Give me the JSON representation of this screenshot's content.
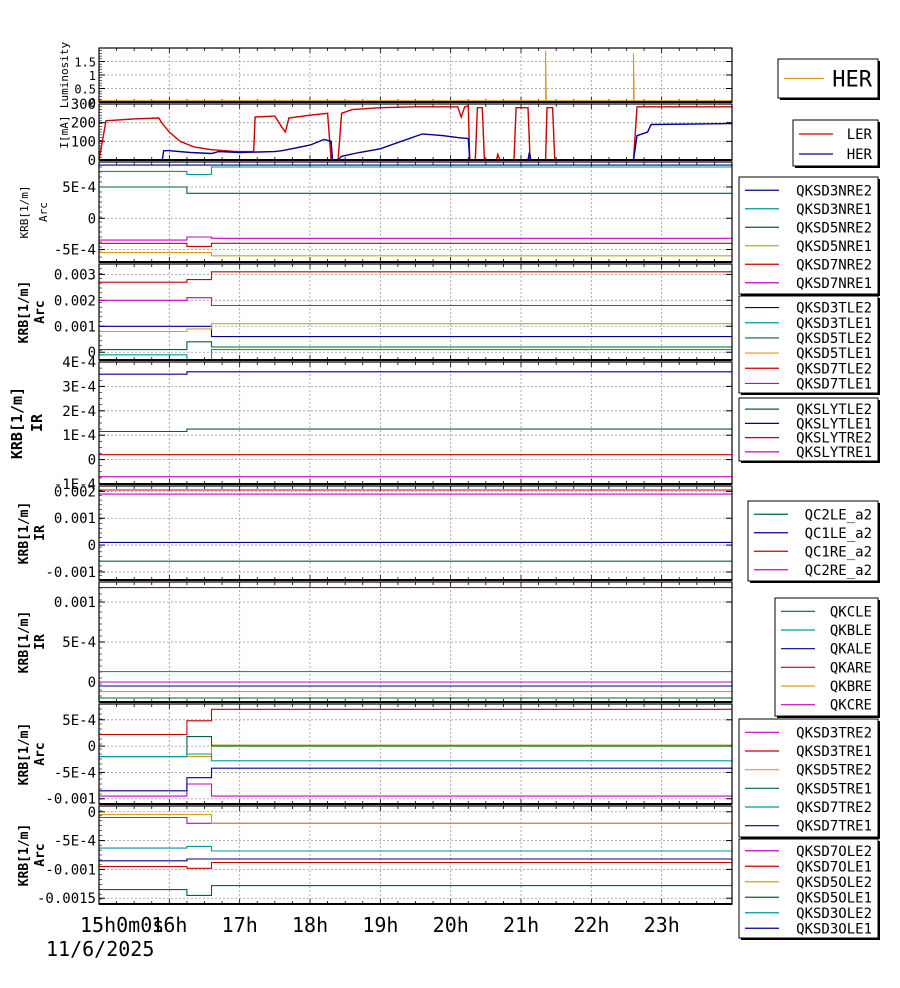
{
  "figure": {
    "date_label": "11/6/2025",
    "x_tick_labels": [
      "15h0m0s",
      "16h",
      "17h",
      "18h",
      "19h",
      "20h",
      "21h",
      "22h",
      "23h"
    ],
    "x_range": [
      15.0,
      24.0
    ]
  },
  "chart_data": [
    {
      "id": "luminosity",
      "type": "line",
      "ylabel": "Luminosity",
      "ylim": [
        0,
        2
      ],
      "yticks": [
        {
          "v": 0,
          "t": "0"
        },
        {
          "v": 0.5,
          "t": "0.5"
        },
        {
          "v": 1,
          "t": "1"
        },
        {
          "v": 1.5,
          "t": "1.5"
        }
      ],
      "series": [
        {
          "name": "HER",
          "color": "#d4a017",
          "points": [
            [
              15,
              0.05
            ],
            [
              21.35,
              0.05
            ],
            [
              21.35,
              1.9
            ],
            [
              21.36,
              0.05
            ],
            [
              22.6,
              0.05
            ],
            [
              22.6,
              1.8
            ],
            [
              22.61,
              0.05
            ],
            [
              24,
              0.05
            ]
          ]
        }
      ]
    },
    {
      "id": "current",
      "type": "line",
      "ylabel": "I[mA]",
      "ylim": [
        0,
        300
      ],
      "yticks": [
        {
          "v": 0,
          "t": "0"
        },
        {
          "v": 100,
          "t": "100"
        },
        {
          "v": 200,
          "t": "200"
        },
        {
          "v": 300,
          "t": "300"
        }
      ],
      "series": [
        {
          "name": "LER",
          "color": "#cc0000",
          "points": [
            [
              15,
              0
            ],
            [
              15.1,
              210
            ],
            [
              15.5,
              220
            ],
            [
              15.85,
              225
            ],
            [
              15.9,
              195
            ],
            [
              16.0,
              150
            ],
            [
              16.15,
              100
            ],
            [
              16.35,
              70
            ],
            [
              16.6,
              55
            ],
            [
              16.95,
              45
            ],
            [
              17.2,
              45
            ],
            [
              17.22,
              230
            ],
            [
              17.5,
              235
            ],
            [
              17.6,
              175
            ],
            [
              17.65,
              150
            ],
            [
              17.7,
              225
            ],
            [
              18.0,
              240
            ],
            [
              18.25,
              250
            ],
            [
              18.3,
              0
            ],
            [
              18.4,
              0
            ],
            [
              18.45,
              250
            ],
            [
              18.6,
              270
            ],
            [
              19.0,
              280
            ],
            [
              19.5,
              285
            ],
            [
              20.0,
              285
            ],
            [
              20.1,
              285
            ],
            [
              20.15,
              230
            ],
            [
              20.2,
              285
            ],
            [
              20.25,
              290
            ],
            [
              20.27,
              0
            ],
            [
              20.35,
              0
            ],
            [
              20.38,
              280
            ],
            [
              20.45,
              280
            ],
            [
              20.48,
              0
            ],
            [
              20.65,
              0
            ],
            [
              20.67,
              30
            ],
            [
              20.7,
              0
            ],
            [
              20.9,
              0
            ],
            [
              20.93,
              280
            ],
            [
              21.1,
              280
            ],
            [
              21.13,
              0
            ],
            [
              21.35,
              0
            ],
            [
              21.37,
              280
            ],
            [
              21.45,
              280
            ],
            [
              21.48,
              0
            ],
            [
              22.6,
              0
            ],
            [
              22.65,
              285
            ],
            [
              23.0,
              285
            ],
            [
              24,
              285
            ]
          ]
        },
        {
          "name": "HER",
          "color": "#000099",
          "points": [
            [
              15,
              0
            ],
            [
              15.9,
              0
            ],
            [
              15.92,
              50
            ],
            [
              16.0,
              50
            ],
            [
              16.3,
              40
            ],
            [
              16.6,
              35
            ],
            [
              16.7,
              45
            ],
            [
              17.0,
              40
            ],
            [
              17.5,
              45
            ],
            [
              17.6,
              50
            ],
            [
              17.8,
              65
            ],
            [
              18.0,
              80
            ],
            [
              18.2,
              110
            ],
            [
              18.3,
              100
            ],
            [
              18.32,
              0
            ],
            [
              18.4,
              0
            ],
            [
              18.45,
              20
            ],
            [
              18.7,
              40
            ],
            [
              19.0,
              60
            ],
            [
              19.3,
              100
            ],
            [
              19.6,
              140
            ],
            [
              19.9,
              130
            ],
            [
              20.1,
              120
            ],
            [
              20.25,
              115
            ],
            [
              20.27,
              0
            ],
            [
              21.1,
              0
            ],
            [
              21.12,
              40
            ],
            [
              21.14,
              0
            ],
            [
              22.6,
              0
            ],
            [
              22.65,
              130
            ],
            [
              22.8,
              150
            ],
            [
              22.85,
              190
            ],
            [
              24,
              195
            ]
          ]
        }
      ]
    },
    {
      "id": "arc1",
      "type": "line",
      "ylabel": "KRB[1/m]",
      "ylabel2": "Arc",
      "ylim": [
        -0.0007,
        0.0009
      ],
      "yticks": [
        {
          "v": 0.0005,
          "t": "5E-4"
        },
        {
          "v": 0,
          "t": "0"
        },
        {
          "v": -0.0005,
          "t": "-5E-4"
        }
      ],
      "series": [
        {
          "name": "QKSD3NRE2",
          "color": "#000099",
          "steps": [
            [
              0.00085,
              0.00085,
              0.00085
            ]
          ]
        },
        {
          "name": "QKSD3NRE1",
          "color": "#009999",
          "steps": [
            [
              0.00075,
              0.0007,
              0.00082
            ]
          ]
        },
        {
          "name": "QKSD5NRE2",
          "color": "#006633",
          "steps": [
            [
              0.0005,
              0.0004,
              0.0004
            ]
          ]
        },
        {
          "name": "QKSD5NRE1",
          "color": "#d4a017",
          "steps": [
            [
              -0.00055,
              -0.00055,
              -0.0006
            ]
          ]
        },
        {
          "name": "QKSD7NRE2",
          "color": "#cc0000",
          "steps": [
            [
              -0.0004,
              -0.00045,
              -0.0004
            ]
          ]
        },
        {
          "name": "QKSD7NRE1",
          "color": "#cc00cc",
          "steps": [
            [
              -0.00035,
              -0.0003,
              -0.00032
            ]
          ]
        }
      ]
    },
    {
      "id": "arc2",
      "type": "line",
      "ylabel": "KRB[1/m]",
      "ylabel2": "Arc",
      "ylim": [
        -0.0003,
        0.0034
      ],
      "yticks": [
        {
          "v": 0.003,
          "t": "0.003"
        },
        {
          "v": 0.002,
          "t": "0.002"
        },
        {
          "v": 0.001,
          "t": "0.001"
        },
        {
          "v": 0,
          "t": "0"
        }
      ],
      "series": [
        {
          "name": "QKSD3TLE2",
          "color": "#000099",
          "steps": [
            [
              0.001,
              0.001,
              0.0006
            ]
          ]
        },
        {
          "name": "QKSD3TLE1",
          "color": "#009999",
          "steps": [
            [
              -0.0001,
              -0.0003,
              0.0001
            ]
          ]
        },
        {
          "name": "QKSD5TLE2",
          "color": "#006633",
          "steps": [
            [
              0.0001,
              0.0004,
              0.0002
            ]
          ]
        },
        {
          "name": "QKSD5TLE1",
          "color": "#d4a017",
          "steps": [
            [
              0.0008,
              0.0009,
              0.0011
            ]
          ]
        },
        {
          "name": "QKSD7TLE2",
          "color": "#cc0000",
          "steps": [
            [
              0.0027,
              0.0028,
              0.0031
            ]
          ]
        },
        {
          "name": "QKSD7TLE1",
          "color": "#cc00cc",
          "steps": [
            [
              0.002,
              0.0021,
              0.0018
            ]
          ]
        }
      ]
    },
    {
      "id": "ir1",
      "type": "line",
      "ylabel": "KRB[1/m]",
      "ylabel2": "IR",
      "ylim": [
        -0.0001,
        0.0004
      ],
      "yticks": [
        {
          "v": 0.0004,
          "t": "4E-4"
        },
        {
          "v": 0.0003,
          "t": "3E-4"
        },
        {
          "v": 0.0002,
          "t": "2E-4"
        },
        {
          "v": 0.0001,
          "t": "1E-4"
        },
        {
          "v": 0,
          "t": "0"
        },
        {
          "v": -0.0001,
          "t": "-1E-4"
        }
      ],
      "series": [
        {
          "name": "QKSLYTLE2",
          "color": "#006633",
          "steps": [
            [
              0.000115,
              0.000125,
              0.000125
            ]
          ]
        },
        {
          "name": "QKSLYTLE1",
          "color": "#000099",
          "steps": [
            [
              0.00035,
              0.00036,
              0.00036
            ]
          ]
        },
        {
          "name": "QKSLYTRE2",
          "color": "#cc0000",
          "steps": [
            [
              2e-05,
              2e-05,
              2e-05
            ]
          ]
        },
        {
          "name": "QKSLYTRE1",
          "color": "#cc00cc",
          "steps": [
            [
              -7e-05,
              -7e-05,
              -7e-05
            ]
          ]
        }
      ]
    },
    {
      "id": "ir2",
      "type": "line",
      "ylabel": "KRB[1/m]",
      "ylabel2": "IR",
      "ylim": [
        -0.0013,
        0.0022
      ],
      "yticks": [
        {
          "v": 0.002,
          "t": "0.002"
        },
        {
          "v": 0.001,
          "t": "0.001"
        },
        {
          "v": 0,
          "t": "0"
        },
        {
          "v": -0.001,
          "t": "-0.001"
        }
      ],
      "series": [
        {
          "name": "QC2LE_a2",
          "color": "#006633",
          "steps": [
            [
              -0.0006,
              -0.0006,
              -0.0006
            ]
          ]
        },
        {
          "name": "QC1LE_a2",
          "color": "#000099",
          "steps": [
            [
              0.0001,
              0.0001,
              0.0001
            ]
          ]
        },
        {
          "name": "QC1RE_a2",
          "color": "#cc0000",
          "steps": [
            [
              0.00205,
              0.00205,
              0.00205
            ]
          ]
        },
        {
          "name": "QC2RE_a2",
          "color": "#cc00cc",
          "steps": [
            [
              0.0019,
              0.0019,
              0.0019
            ]
          ]
        }
      ]
    },
    {
      "id": "ir3",
      "type": "line",
      "ylabel": "KRB[1/m]",
      "ylabel2": "IR",
      "ylim": [
        -0.00025,
        0.00125
      ],
      "yticks": [
        {
          "v": 0.001,
          "t": "0.001"
        },
        {
          "v": 0.0005,
          "t": "5E-4"
        },
        {
          "v": 0,
          "t": "0"
        }
      ],
      "series": [
        {
          "name": "QKCLE",
          "color": "#006633",
          "steps": [
            [
              -0.0002,
              -0.0002,
              -0.0002
            ]
          ]
        },
        {
          "name": "QKBLE",
          "color": "#009999",
          "steps": [
            [
              0.00013,
              0.00013,
              0.00013
            ]
          ]
        },
        {
          "name": "QKALE",
          "color": "#000099",
          "steps": [
            [
              -5e-05,
              -5e-05,
              -5e-05
            ]
          ]
        },
        {
          "name": "QKARE",
          "color": "#cc0000",
          "steps": [
            [
              0.00118,
              0.00118,
              0.00118
            ]
          ]
        },
        {
          "name": "QKBRE",
          "color": "#d4a017",
          "steps": [
            [
              -0.00012,
              -0.00012,
              -0.00012
            ]
          ]
        },
        {
          "name": "QKCRE",
          "color": "#cc00cc",
          "steps": [
            [
              0.0,
              0.0,
              0.0
            ]
          ]
        }
      ]
    },
    {
      "id": "arc3",
      "type": "line",
      "ylabel": "KRB[1/m]",
      "ylabel2": "Arc",
      "ylim": [
        -0.0011,
        0.0008
      ],
      "yticks": [
        {
          "v": 0.0005,
          "t": "5E-4"
        },
        {
          "v": 0,
          "t": "0"
        },
        {
          "v": -0.0005,
          "t": "-5E-4"
        },
        {
          "v": -0.001,
          "t": "-0.001"
        }
      ],
      "series": [
        {
          "name": "QKSD3TRE2",
          "color": "#cc00cc",
          "steps": [
            [
              -0.00095,
              -0.00072,
              -0.00095
            ]
          ]
        },
        {
          "name": "QKSD3TRE1",
          "color": "#cc0000",
          "steps": [
            [
              0.00022,
              0.00048,
              0.0007
            ]
          ]
        },
        {
          "name": "QKSD5TRE2",
          "color": "#d4a017",
          "steps": [
            [
              -0.0002,
              -0.0002,
              2e-05
            ]
          ]
        },
        {
          "name": "QKSD5TRE1",
          "color": "#006633",
          "steps": [
            [
              -0.0002,
              0.00018,
              0.0
            ]
          ]
        },
        {
          "name": "QKSD7TRE2",
          "color": "#009999",
          "steps": [
            [
              -0.0002,
              -0.00015,
              -0.00028
            ]
          ]
        },
        {
          "name": "QKSD7TRE1",
          "color": "#000099",
          "steps": [
            [
              -0.00085,
              -0.0006,
              -0.00042
            ]
          ]
        }
      ]
    },
    {
      "id": "arc4",
      "type": "line",
      "ylabel": "KRB[1/m]",
      "ylabel2": "Arc",
      "ylim": [
        -0.0016,
        0.0001
      ],
      "yticks": [
        {
          "v": 0,
          "t": "0"
        },
        {
          "v": -0.0005,
          "t": "-5E-4"
        },
        {
          "v": -0.001,
          "t": "-0.001"
        },
        {
          "v": -0.0015,
          "t": "-0.0015"
        }
      ],
      "series": [
        {
          "name": "QKSD7OLE2",
          "color": "#cc00cc",
          "steps": [
            [
              -0.0001,
              -0.0002,
              -0.0002
            ]
          ]
        },
        {
          "name": "QKSD7OLE1",
          "color": "#cc0000",
          "steps": [
            [
              -0.00095,
              -0.00098,
              -0.00088
            ]
          ]
        },
        {
          "name": "QKSD5OLE2",
          "color": "#d4a017",
          "steps": [
            [
              -5e-05,
              -5e-05,
              -0.0002
            ]
          ]
        },
        {
          "name": "QKSD5OLE1",
          "color": "#006633",
          "steps": [
            [
              -0.00135,
              -0.00145,
              -0.00128
            ]
          ]
        },
        {
          "name": "QKSD3OLE2",
          "color": "#009999",
          "steps": [
            [
              -0.00063,
              -0.0006,
              -0.00068
            ]
          ]
        },
        {
          "name": "QKSD3OLE1",
          "color": "#000099",
          "steps": [
            [
              -0.00085,
              -0.00082,
              -0.00082
            ]
          ]
        }
      ]
    }
  ]
}
